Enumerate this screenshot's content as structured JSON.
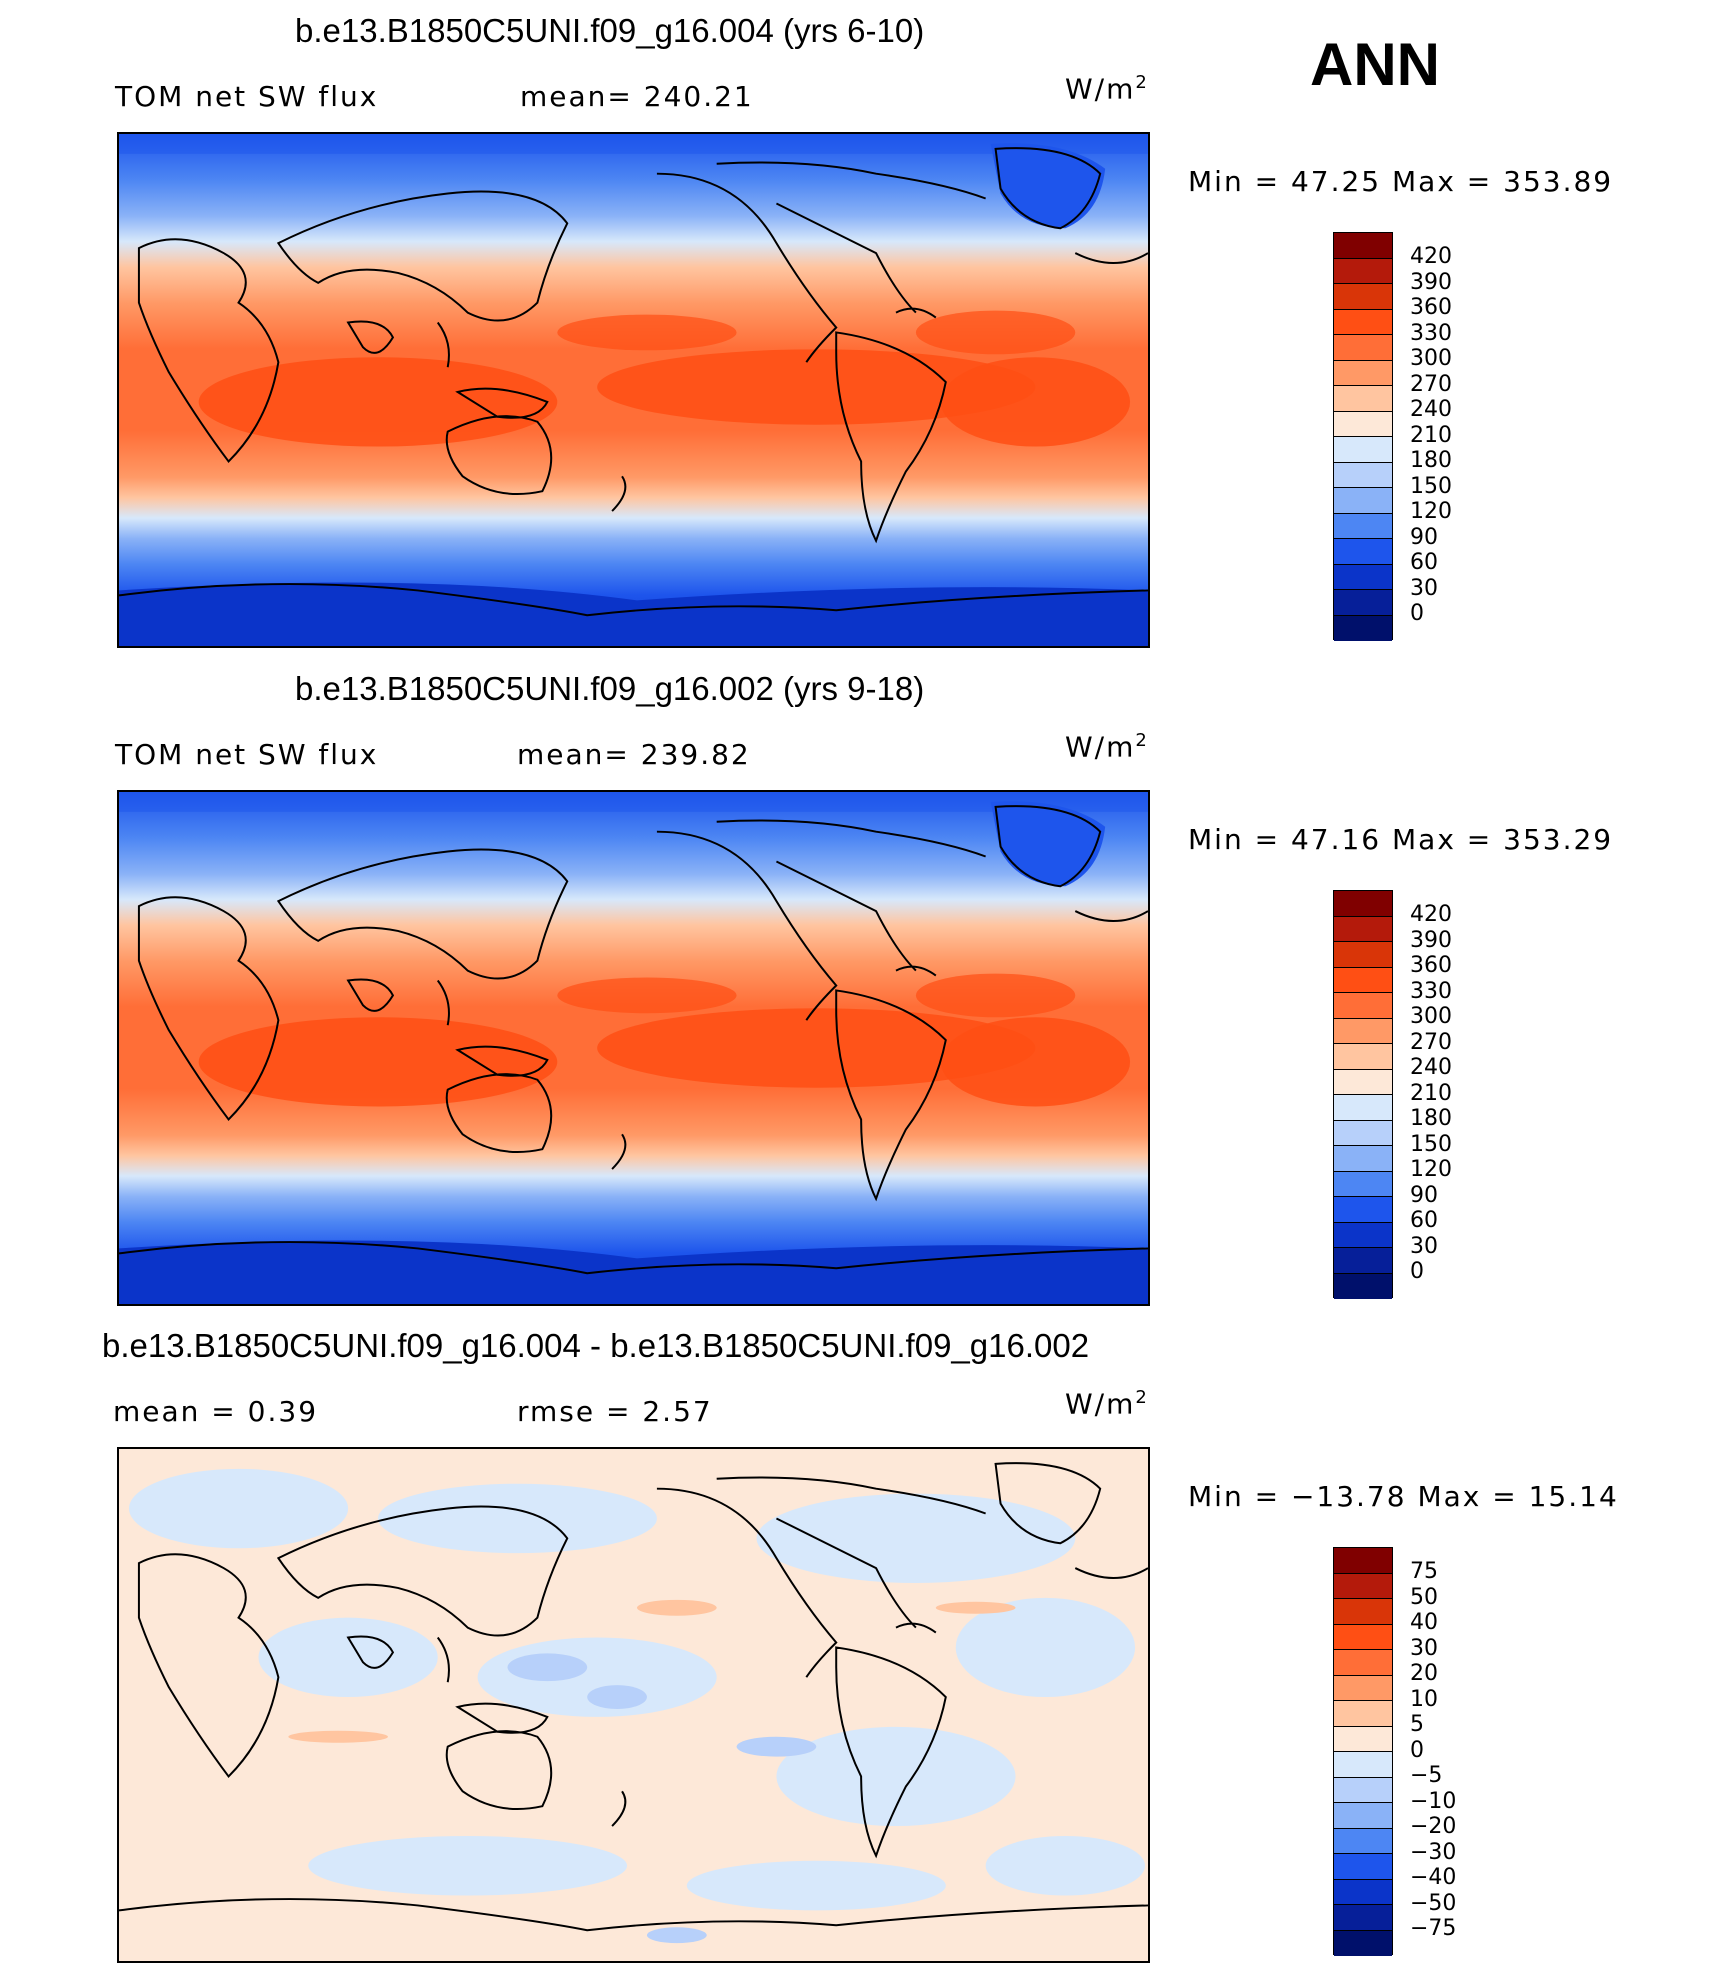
{
  "season": "ANN",
  "panels": [
    {
      "title": "b.e13.B1850C5UNI.f09_g16.004 (yrs 6-10)",
      "left_label": "TOM net SW flux",
      "mean_label": "mean= 240.21",
      "units_base": "W/m",
      "units_exp": "2",
      "minmax": "Min =   47.25 Max = 353.89",
      "colorbar": {
        "levels": [
          "420",
          "390",
          "360",
          "330",
          "300",
          "270",
          "240",
          "210",
          "180",
          "150",
          "120",
          "90",
          "60",
          "30",
          "0"
        ],
        "colors": [
          "#800000",
          "#b41a0b",
          "#d93508",
          "#ff4f14",
          "#ff6e37",
          "#ff9966",
          "#ffc5a0",
          "#fde8d8",
          "#d7e8fb",
          "#b7d0fa",
          "#8ab2f7",
          "#4d86f3",
          "#1e55ec",
          "#0b34c9",
          "#061f99",
          "#00106b"
        ]
      }
    },
    {
      "title": "b.e13.B1850C5UNI.f09_g16.002 (yrs 9-18)",
      "left_label": "TOM net SW flux",
      "mean_label": "mean= 239.82",
      "units_base": "W/m",
      "units_exp": "2",
      "minmax": "Min =   47.16 Max = 353.29",
      "colorbar": {
        "levels": [
          "420",
          "390",
          "360",
          "330",
          "300",
          "270",
          "240",
          "210",
          "180",
          "150",
          "120",
          "90",
          "60",
          "30",
          "0"
        ],
        "colors": [
          "#800000",
          "#b41a0b",
          "#d93508",
          "#ff4f14",
          "#ff6e37",
          "#ff9966",
          "#ffc5a0",
          "#fde8d8",
          "#d7e8fb",
          "#b7d0fa",
          "#8ab2f7",
          "#4d86f3",
          "#1e55ec",
          "#0b34c9",
          "#061f99",
          "#00106b"
        ]
      }
    },
    {
      "title": "b.e13.B1850C5UNI.f09_g16.004 - b.e13.B1850C5UNI.f09_g16.002",
      "left_label": "mean =    0.39",
      "mean_label": "rmse =    2.57",
      "units_base": "W/m",
      "units_exp": "2",
      "minmax": "Min = −13.78 Max =   15.14",
      "colorbar": {
        "levels": [
          "75",
          "50",
          "40",
          "30",
          "20",
          "10",
          "5",
          "0",
          "−5",
          "−10",
          "−20",
          "−30",
          "−40",
          "−50",
          "−75"
        ],
        "colors": [
          "#800000",
          "#b41a0b",
          "#d93508",
          "#ff4f14",
          "#ff6e37",
          "#ff9966",
          "#ffc5a0",
          "#fde8d8",
          "#d7e8fb",
          "#b7d0fa",
          "#8ab2f7",
          "#4d86f3",
          "#1e55ec",
          "#0b34c9",
          "#061f99",
          "#00106b"
        ]
      }
    }
  ]
}
